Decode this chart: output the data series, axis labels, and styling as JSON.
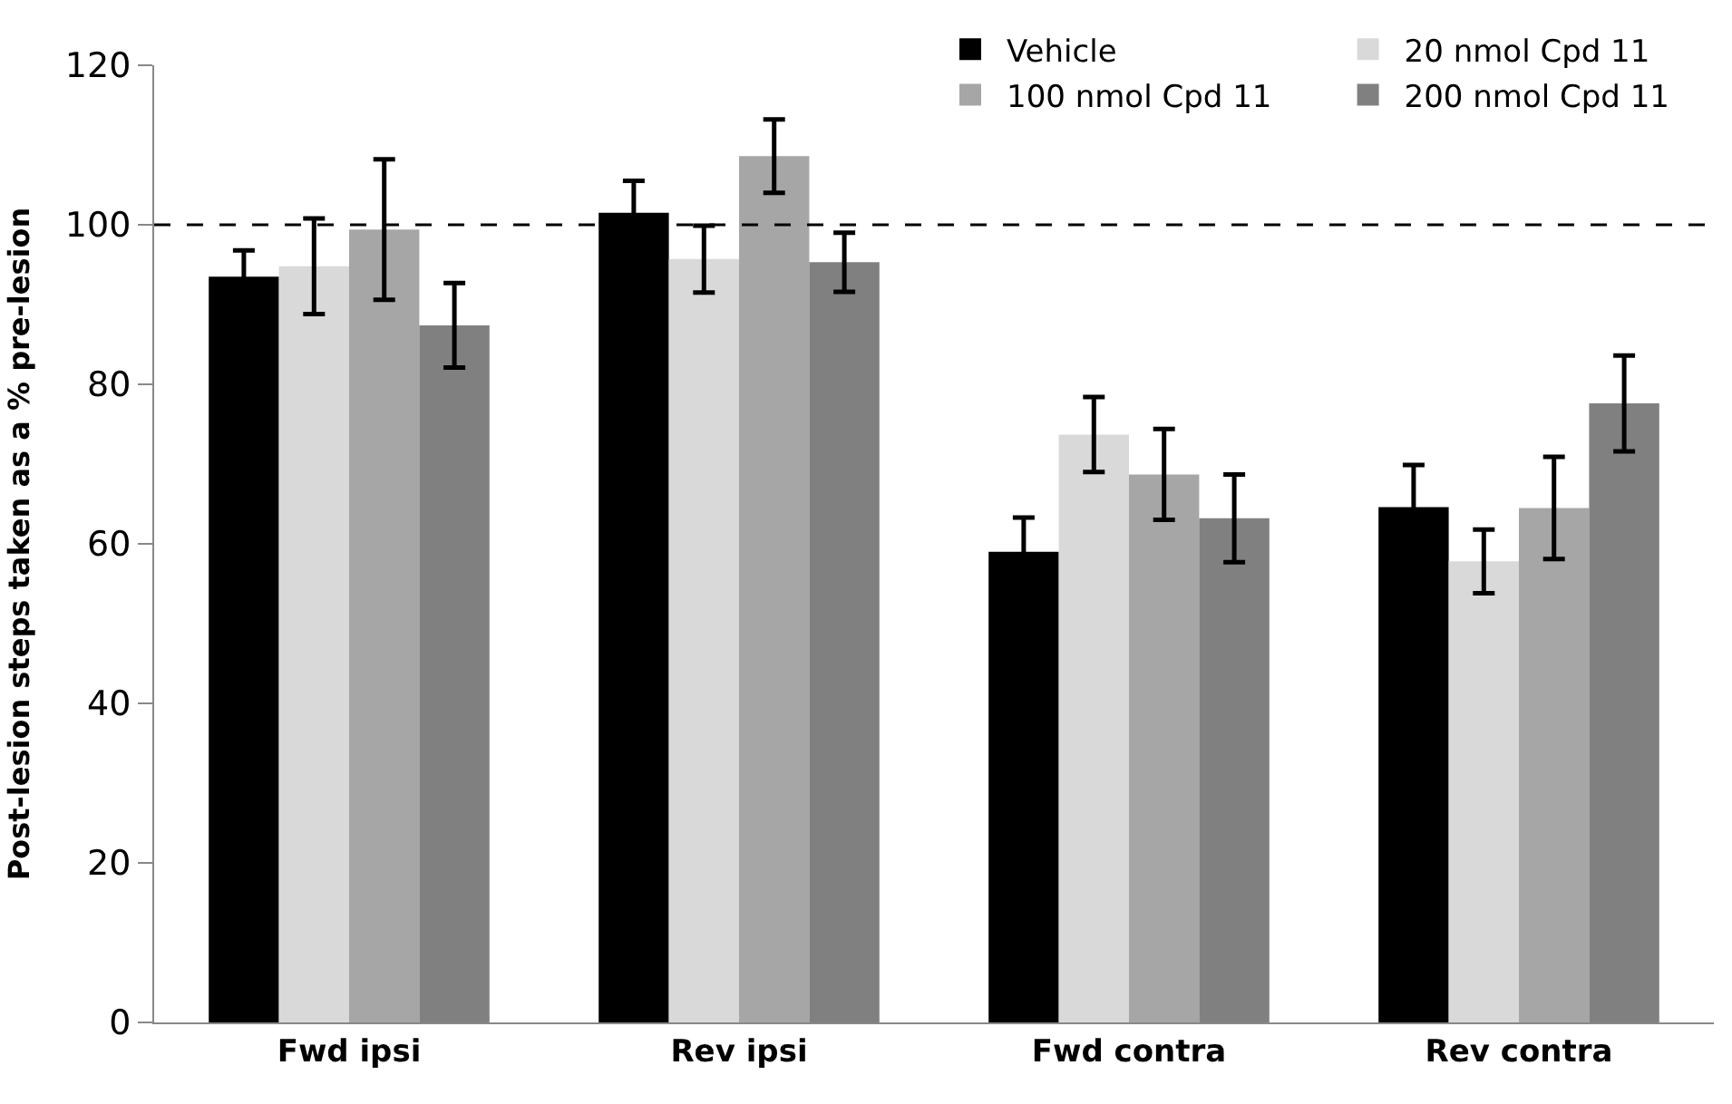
{
  "chart_data": {
    "type": "bar",
    "ylabel": "Post-lesion steps taken as a % pre-lesion",
    "categories": [
      "Fwd ipsi",
      "Rev ipsi",
      "Fwd contra",
      "Rev contra"
    ],
    "series": [
      {
        "name": "Vehicle",
        "color": "#000000",
        "values": [
          93.5,
          101.5,
          59,
          64.6
        ],
        "errors": [
          3.3,
          4,
          4.3,
          5.3
        ]
      },
      {
        "name": "20 nmol Cpd 11",
        "color": "#d9d9d9",
        "values": [
          94.8,
          95.7,
          73.7,
          57.8
        ],
        "errors": [
          6,
          4.2,
          4.7,
          4
        ]
      },
      {
        "name": "100 nmol Cpd 11",
        "color": "#a6a6a6",
        "values": [
          99.4,
          108.6,
          68.7,
          64.5
        ],
        "errors": [
          8.8,
          4.6,
          5.7,
          6.4
        ]
      },
      {
        "name": "200 nmol Cpd 11",
        "color": "#808080",
        "values": [
          87.4,
          95.3,
          63.2,
          77.6
        ],
        "errors": [
          5.3,
          3.7,
          5.5,
          6
        ]
      }
    ],
    "ylim": [
      0,
      120
    ],
    "yticks": [
      0,
      20,
      40,
      60,
      80,
      100,
      120
    ],
    "ref_lines": [
      {
        "axis": "y",
        "value": 100,
        "label": null,
        "color": "#000000",
        "line_style": "dashed"
      }
    ],
    "legend": "top right"
  }
}
